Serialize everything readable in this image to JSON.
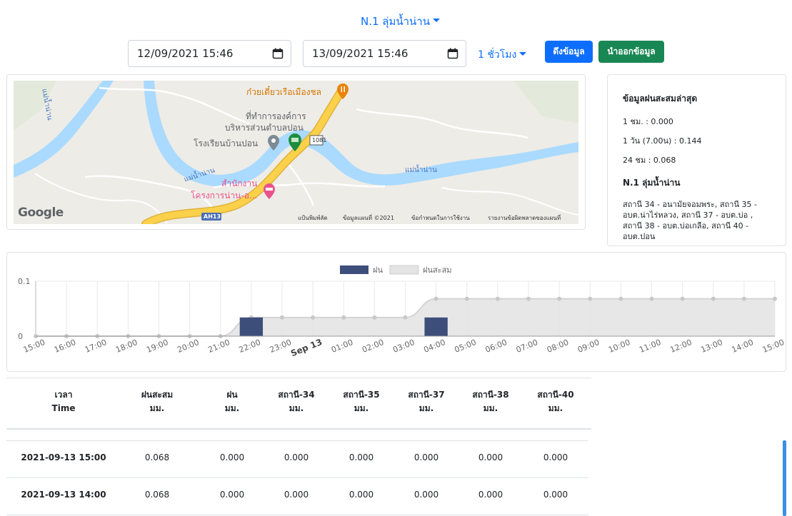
{
  "header": {
    "station_title": "N.1 ลุ่มน้ำน่าน",
    "start_datetime": "12/09/2021 15:46",
    "end_datetime": "13/09/2021 15:46",
    "interval": "1 ชั่วโมง",
    "fetch_label": "ดึงข้อมูล",
    "export_label": "นำออกข้อมูล"
  },
  "map": {
    "labels": {
      "restaurant": "ก๋วยเตี๋ยวเรือเมืองชล",
      "office_line1": "ที่ทำการองค์การ",
      "office_line2": "บริหารส่วนตำบลปอน",
      "school": "โรงเรียนบ้านปอน",
      "road_shield": "1081",
      "river_left": "แม่น้ำน่าน",
      "river_mid": "แม่น้ำน่าน",
      "river_right": "แม่น้ำน่าน",
      "hotel_line1": "สำนักงาน",
      "hotel_line2": "โครงการน่าน-อ...",
      "highway": "AH13",
      "logo": "Google"
    },
    "footer": {
      "shortcuts": "แป้นพิมพ์ลัด",
      "map_data": "ข้อมูลแผนที่ ©2021",
      "terms": "ข้อกำหนดในการใช้งาน",
      "report": "รายงานข้อผิดพลาดของแผนที่"
    },
    "colors": {
      "water": "#aadaff",
      "road_major": "#fbd14b",
      "marker_pink": "#e8538a",
      "marker_green": "#1e8e3e",
      "marker_orange": "#e8830c"
    }
  },
  "info": {
    "title": "ข้อมูลฝนสะสมล่าสุด",
    "lines": [
      "1 ชม. : 0.000",
      "1 วัน (7.00น) : 0.144",
      "24 ชม : 0.068"
    ],
    "station_name": "N.1 ลุ่มน้ำน่าน",
    "station_desc": "สถานี 34 - อนามัยจอมพระ, สถานี 35 - อบต.น่าไร่หลวง, สถานี 37 - อบต.บ่อ , สถานี 38 - อบต.บ่อเกลือ, สถานี 40 - อบต.ปอน"
  },
  "chart_data": {
    "type": "bar",
    "legend": [
      "ฝน",
      "ฝนสะสม"
    ],
    "legend_placement": "top-center",
    "categories": [
      "15:00",
      "16:00",
      "17:00",
      "18:00",
      "19:00",
      "20:00",
      "21:00",
      "22:00",
      "23:00",
      "Sep 13",
      "01:00",
      "02:00",
      "03:00",
      "04:00",
      "05:00",
      "06:00",
      "07:00",
      "08:00",
      "09:00",
      "10:00",
      "11:00",
      "12:00",
      "13:00",
      "14:00",
      "15:00"
    ],
    "series": [
      {
        "name": "ฝน",
        "type": "bar",
        "color": "#3d4e7a",
        "values": [
          0,
          0,
          0,
          0,
          0,
          0,
          0,
          0.034,
          0,
          0,
          0,
          0,
          0,
          0.034,
          0,
          0,
          0,
          0,
          0,
          0,
          0,
          0,
          0,
          0,
          0
        ]
      },
      {
        "name": "ฝนสะสม",
        "type": "area",
        "color": "#e4e4e4",
        "values": [
          0,
          0,
          0,
          0,
          0,
          0,
          0,
          0.034,
          0.034,
          0.034,
          0.034,
          0.034,
          0.034,
          0.068,
          0.068,
          0.068,
          0.068,
          0.068,
          0.068,
          0.068,
          0.068,
          0.068,
          0.068,
          0.068,
          0.068
        ]
      }
    ],
    "yticks": [
      "0",
      "0.1"
    ],
    "ylim": [
      0,
      0.1
    ],
    "grid": true
  },
  "table": {
    "headers": [
      {
        "line1": "เวลา",
        "line2": "Time"
      },
      {
        "line1": "ฝนสะสม",
        "line2": "มม."
      },
      {
        "line1": "ฝน",
        "line2": "มม."
      },
      {
        "line1": "สถานี-34",
        "line2": "มม."
      },
      {
        "line1": "สถานี-35",
        "line2": "มม."
      },
      {
        "line1": "สถานี-37",
        "line2": "มม."
      },
      {
        "line1": "สถานี-38",
        "line2": "มม."
      },
      {
        "line1": "สถานี-40",
        "line2": "มม."
      }
    ],
    "rows": [
      [
        "2021-09-13 15:00",
        "0.068",
        "0.000",
        "0.000",
        "0.000",
        "0.000",
        "0.000",
        "0.000"
      ],
      [
        "2021-09-13 14:00",
        "0.068",
        "0.000",
        "0.000",
        "0.000",
        "0.000",
        "0.000",
        "0.000"
      ]
    ]
  }
}
